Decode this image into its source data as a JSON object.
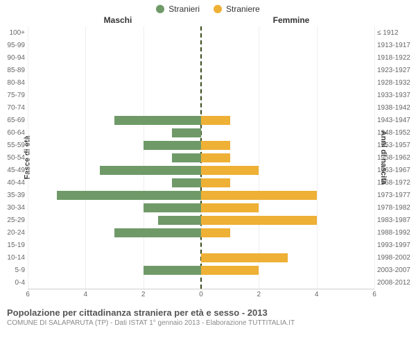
{
  "legend": {
    "male": {
      "label": "Stranieri",
      "color": "#6f9a68"
    },
    "female": {
      "label": "Straniere",
      "color": "#eeb035"
    }
  },
  "headers": {
    "left": "Maschi",
    "right": "Femmine"
  },
  "axis_titles": {
    "left": "Fasce di età",
    "right": "Anni di nascita"
  },
  "x_axis": {
    "max": 6,
    "ticks": [
      6,
      4,
      2,
      0,
      2,
      4,
      6
    ]
  },
  "style": {
    "grid_color": "#eeeeee",
    "center_line_color": "#3a4a1a",
    "background": "#ffffff",
    "tick_color": "#666666"
  },
  "rows": [
    {
      "age": "100+",
      "birth": "≤ 1912",
      "m": 0,
      "f": 0
    },
    {
      "age": "95-99",
      "birth": "1913-1917",
      "m": 0,
      "f": 0
    },
    {
      "age": "90-94",
      "birth": "1918-1922",
      "m": 0,
      "f": 0
    },
    {
      "age": "85-89",
      "birth": "1923-1927",
      "m": 0,
      "f": 0
    },
    {
      "age": "80-84",
      "birth": "1928-1932",
      "m": 0,
      "f": 0
    },
    {
      "age": "75-79",
      "birth": "1933-1937",
      "m": 0,
      "f": 0
    },
    {
      "age": "70-74",
      "birth": "1938-1942",
      "m": 0,
      "f": 0
    },
    {
      "age": "65-69",
      "birth": "1943-1947",
      "m": 3,
      "f": 1
    },
    {
      "age": "60-64",
      "birth": "1948-1952",
      "m": 1,
      "f": 0
    },
    {
      "age": "55-59",
      "birth": "1953-1957",
      "m": 2,
      "f": 1
    },
    {
      "age": "50-54",
      "birth": "1958-1962",
      "m": 1,
      "f": 1
    },
    {
      "age": "45-49",
      "birth": "1963-1967",
      "m": 3.5,
      "f": 2
    },
    {
      "age": "40-44",
      "birth": "1968-1972",
      "m": 1,
      "f": 1
    },
    {
      "age": "35-39",
      "birth": "1973-1977",
      "m": 5,
      "f": 4
    },
    {
      "age": "30-34",
      "birth": "1978-1982",
      "m": 2,
      "f": 2
    },
    {
      "age": "25-29",
      "birth": "1983-1987",
      "m": 1.5,
      "f": 4
    },
    {
      "age": "20-24",
      "birth": "1988-1992",
      "m": 3,
      "f": 1
    },
    {
      "age": "15-19",
      "birth": "1993-1997",
      "m": 0,
      "f": 0
    },
    {
      "age": "10-14",
      "birth": "1998-2002",
      "m": 0,
      "f": 3
    },
    {
      "age": "5-9",
      "birth": "2003-2007",
      "m": 2,
      "f": 2
    },
    {
      "age": "0-4",
      "birth": "2008-2012",
      "m": 0,
      "f": 0
    }
  ],
  "footer": {
    "title": "Popolazione per cittadinanza straniera per età e sesso - 2013",
    "subtitle": "COMUNE DI SALAPARUTA (TP) - Dati ISTAT 1° gennaio 2013 - Elaborazione TUTTITALIA.IT"
  }
}
